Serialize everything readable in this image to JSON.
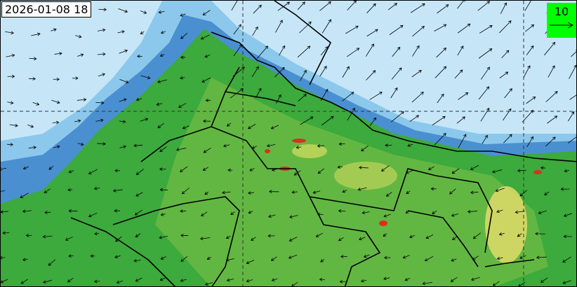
{
  "timestamp": "2026-01-08 18",
  "legend": {
    "reference_vector_value": "10",
    "color": "#00ff00"
  },
  "colors": {
    "ocean_low": "#c6e6f8",
    "band_light": "#8cc8ec",
    "band_mid": "#4a90d0",
    "green": "#3caa3c",
    "yellow_green": "#a8cc50",
    "yellow": "#e8e070",
    "red": "#d83020"
  }
}
